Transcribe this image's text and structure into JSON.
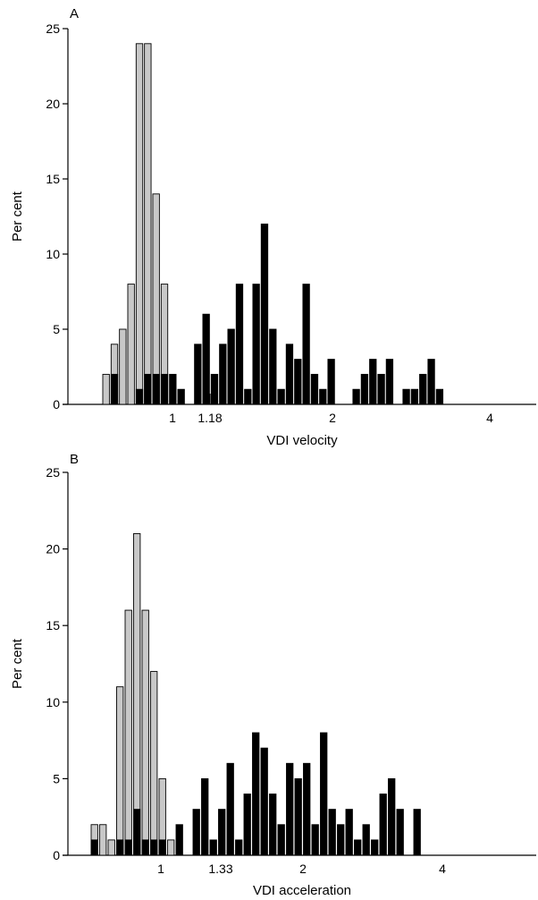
{
  "chart_data": [
    {
      "type": "bar",
      "panel_label": "A",
      "xlabel": "VDI velocity",
      "ylabel": "Per cent",
      "ylim": [
        0,
        25
      ],
      "yticks": [
        0,
        5,
        10,
        15,
        20,
        25
      ],
      "x_ticks": [
        "1",
        "1.18",
        "2",
        "4"
      ],
      "bar_slots": 50,
      "series": [
        {
          "name": "",
          "color": "#c8c8c8",
          "values": [
            2,
            4,
            5,
            8,
            24,
            24,
            14,
            8,
            0,
            0,
            0,
            0,
            0,
            0,
            0,
            0,
            0,
            0,
            0,
            0,
            0,
            0,
            0,
            0,
            0,
            0,
            0,
            0,
            0,
            0,
            0,
            0,
            0,
            0,
            0,
            0,
            0,
            0,
            0,
            0,
            0,
            0,
            0,
            0,
            0,
            0,
            0,
            0,
            0,
            0
          ]
        },
        {
          "name": "",
          "color": "#000000",
          "values": [
            0,
            2,
            0,
            0,
            1,
            2,
            2,
            2,
            2,
            1,
            0,
            4,
            6,
            2,
            4,
            5,
            8,
            1,
            8,
            12,
            5,
            1,
            4,
            3,
            8,
            2,
            1,
            3,
            0,
            0,
            1,
            2,
            3,
            2,
            3,
            0,
            1,
            1,
            2,
            3,
            1,
            0,
            0,
            0,
            0,
            0,
            0,
            0,
            0,
            0
          ]
        }
      ]
    },
    {
      "type": "bar",
      "panel_label": "B",
      "xlabel": "VDI acceleration",
      "ylabel": "Per cent",
      "ylim": [
        0,
        25
      ],
      "yticks": [
        0,
        5,
        10,
        15,
        20,
        25
      ],
      "x_ticks": [
        "1",
        "1.33",
        "2",
        "4"
      ],
      "bar_slots": 50,
      "series": [
        {
          "name": "",
          "color": "#c8c8c8",
          "values": [
            2,
            2,
            1,
            11,
            16,
            21,
            16,
            12,
            5,
            1,
            0,
            0,
            0,
            0,
            0,
            0,
            0,
            0,
            0,
            0,
            0,
            0,
            0,
            0,
            0,
            0,
            0,
            0,
            0,
            0,
            0,
            0,
            0,
            0,
            0,
            0,
            0,
            0,
            0,
            0,
            0,
            0,
            0,
            0,
            0,
            0,
            0,
            0,
            0,
            0
          ]
        },
        {
          "name": "",
          "color": "#000000",
          "values": [
            1,
            0,
            0,
            1,
            1,
            3,
            1,
            1,
            1,
            0,
            2,
            0,
            3,
            5,
            1,
            3,
            6,
            1,
            4,
            8,
            7,
            4,
            2,
            6,
            5,
            6,
            2,
            8,
            3,
            2,
            3,
            1,
            2,
            1,
            4,
            5,
            3,
            0,
            3,
            0,
            0,
            0,
            0,
            0,
            0,
            0,
            0,
            0,
            0,
            0
          ]
        }
      ]
    }
  ]
}
